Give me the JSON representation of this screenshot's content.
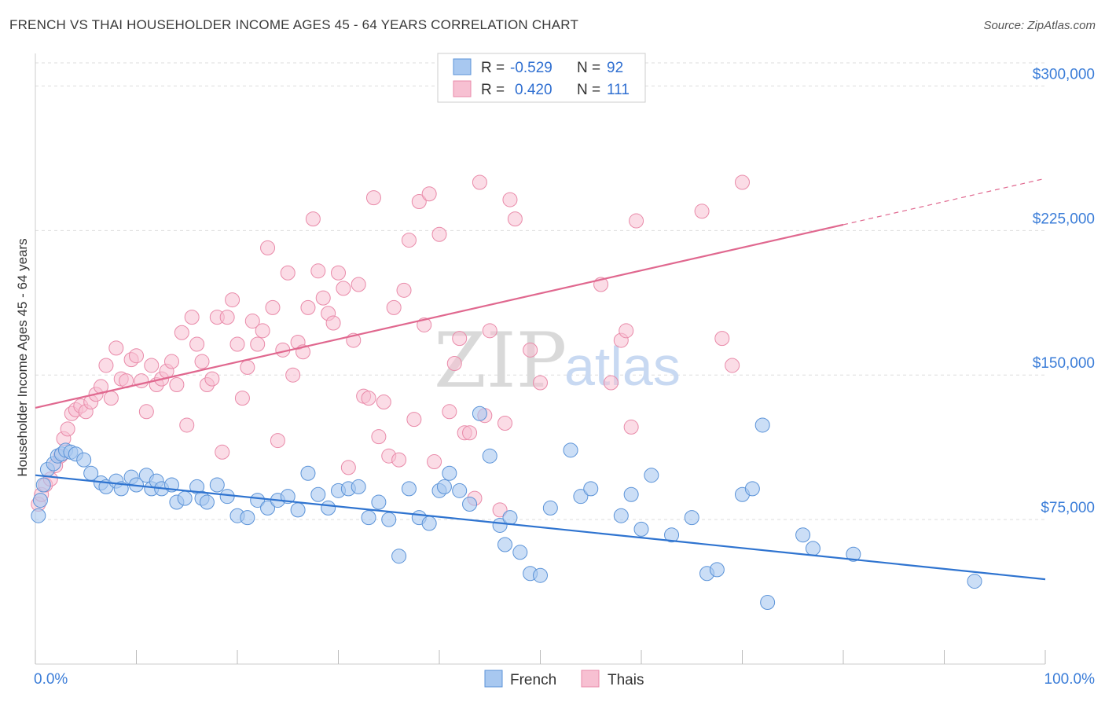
{
  "header": {
    "title": "FRENCH VS THAI HOUSEHOLDER INCOME AGES 45 - 64 YEARS CORRELATION CHART",
    "source": "Source: ZipAtlas.com"
  },
  "watermark": {
    "zip": "ZIP",
    "atlas": "atlas"
  },
  "legend_top": {
    "rows": [
      {
        "r_label": "R =",
        "r_value": "-0.529",
        "n_label": "N =",
        "n_value": "92",
        "color": "#a8c8f0"
      },
      {
        "r_label": "R =",
        "r_value": "0.420",
        "n_label": "N =",
        "n_value": "111",
        "color": "#f5b3c8"
      }
    ]
  },
  "legend_bottom": {
    "items": [
      "French",
      "Thais"
    ]
  },
  "colors": {
    "french_fill": "#a8c8f0",
    "french_stroke": "#5b93d8",
    "french_line": "#2f74d0",
    "thai_fill": "#f7c0d2",
    "thai_stroke": "#e98aa9",
    "thai_line": "#e0688f",
    "axis_text": "#3b7dd8",
    "grid": "#dddddd"
  },
  "chart_data": {
    "type": "scatter",
    "title": "FRENCH VS THAI HOUSEHOLDER INCOME AGES 45 - 64 YEARS CORRELATION CHART",
    "ylabel": "Householder Income Ages 45 - 64 years",
    "xlabel": "",
    "xlim": [
      0,
      100
    ],
    "ylim": [
      0,
      312000
    ],
    "x_tick_labels": [
      "0.0%",
      "100.0%"
    ],
    "y_ticks": [
      75000,
      150000,
      225000,
      300000
    ],
    "y_tick_labels": [
      "$75,000",
      "$150,000",
      "$225,000",
      "$300,000"
    ],
    "grid": true,
    "legend_position": "top-center",
    "series": [
      {
        "name": "French",
        "R": -0.529,
        "N": 92,
        "trend": {
          "x": [
            0,
            100
          ],
          "y": [
            98000,
            44000
          ]
        },
        "points": [
          [
            0.3,
            77000
          ],
          [
            0.5,
            85000
          ],
          [
            0.8,
            93000
          ],
          [
            1.2,
            101000
          ],
          [
            1.8,
            104000
          ],
          [
            2.2,
            108000
          ],
          [
            2.6,
            109000
          ],
          [
            3.0,
            111000
          ],
          [
            3.5,
            110000
          ],
          [
            4.0,
            109000
          ],
          [
            4.8,
            106000
          ],
          [
            5.5,
            99000
          ],
          [
            6.5,
            94000
          ],
          [
            7.0,
            92000
          ],
          [
            8.0,
            95000
          ],
          [
            8.5,
            91000
          ],
          [
            9.5,
            97000
          ],
          [
            10.0,
            93000
          ],
          [
            11.0,
            98000
          ],
          [
            11.5,
            91000
          ],
          [
            12.0,
            95000
          ],
          [
            12.5,
            91000
          ],
          [
            13.5,
            93000
          ],
          [
            14.0,
            84000
          ],
          [
            14.8,
            86000
          ],
          [
            16.0,
            92000
          ],
          [
            16.5,
            86000
          ],
          [
            17.0,
            84000
          ],
          [
            18.0,
            93000
          ],
          [
            19.0,
            87000
          ],
          [
            20.0,
            77000
          ],
          [
            21.0,
            76000
          ],
          [
            22.0,
            85000
          ],
          [
            23.0,
            81000
          ],
          [
            24.0,
            85000
          ],
          [
            25.0,
            87000
          ],
          [
            26.0,
            80000
          ],
          [
            27.0,
            99000
          ],
          [
            28.0,
            88000
          ],
          [
            29.0,
            81000
          ],
          [
            30.0,
            90000
          ],
          [
            31.0,
            91000
          ],
          [
            32.0,
            92000
          ],
          [
            33.0,
            76000
          ],
          [
            34.0,
            84000
          ],
          [
            35.0,
            75000
          ],
          [
            36.0,
            56000
          ],
          [
            37.0,
            91000
          ],
          [
            38.0,
            76000
          ],
          [
            39.0,
            73000
          ],
          [
            40.0,
            90000
          ],
          [
            40.5,
            92000
          ],
          [
            41.0,
            99000
          ],
          [
            42.0,
            90000
          ],
          [
            43.0,
            83000
          ],
          [
            44.0,
            130000
          ],
          [
            45.0,
            108000
          ],
          [
            46.0,
            72000
          ],
          [
            46.5,
            62000
          ],
          [
            47.0,
            76000
          ],
          [
            48.0,
            58000
          ],
          [
            49.0,
            47000
          ],
          [
            50.0,
            46000
          ],
          [
            51.0,
            81000
          ],
          [
            53.0,
            111000
          ],
          [
            54.0,
            87000
          ],
          [
            55.0,
            91000
          ],
          [
            58.0,
            77000
          ],
          [
            59.0,
            88000
          ],
          [
            60.0,
            70000
          ],
          [
            61.0,
            98000
          ],
          [
            63.0,
            67000
          ],
          [
            65.0,
            76000
          ],
          [
            66.5,
            47000
          ],
          [
            67.5,
            49000
          ],
          [
            70.0,
            88000
          ],
          [
            71.0,
            91000
          ],
          [
            72.0,
            124000
          ],
          [
            72.5,
            32000
          ],
          [
            76.0,
            67000
          ],
          [
            77.0,
            60000
          ],
          [
            81.0,
            57000
          ],
          [
            93.0,
            43000
          ]
        ]
      },
      {
        "name": "Thais",
        "R": 0.42,
        "N": 111,
        "trend": {
          "x": [
            0,
            80
          ],
          "y": [
            133000,
            228000
          ]
        },
        "trend_dashed_extension": {
          "x": [
            80,
            100
          ],
          "y": [
            228000,
            252000
          ]
        },
        "points": [
          [
            0.3,
            83000
          ],
          [
            0.6,
            88000
          ],
          [
            1.0,
            93000
          ],
          [
            1.5,
            96000
          ],
          [
            2.0,
            103000
          ],
          [
            2.5,
            108000
          ],
          [
            2.8,
            117000
          ],
          [
            3.2,
            122000
          ],
          [
            3.6,
            130000
          ],
          [
            4.0,
            132000
          ],
          [
            4.5,
            134000
          ],
          [
            5.0,
            131000
          ],
          [
            5.5,
            136000
          ],
          [
            6.0,
            140000
          ],
          [
            6.5,
            144000
          ],
          [
            7.0,
            155000
          ],
          [
            7.5,
            138000
          ],
          [
            8.0,
            164000
          ],
          [
            8.5,
            148000
          ],
          [
            9.0,
            147000
          ],
          [
            9.5,
            158000
          ],
          [
            10.0,
            160000
          ],
          [
            10.5,
            147000
          ],
          [
            11.0,
            131000
          ],
          [
            11.5,
            155000
          ],
          [
            12.0,
            145000
          ],
          [
            12.5,
            148000
          ],
          [
            13.0,
            152000
          ],
          [
            13.5,
            157000
          ],
          [
            14.0,
            145000
          ],
          [
            14.5,
            172000
          ],
          [
            15.0,
            124000
          ],
          [
            15.5,
            180000
          ],
          [
            16.0,
            166000
          ],
          [
            16.5,
            157000
          ],
          [
            17.0,
            145000
          ],
          [
            17.5,
            148000
          ],
          [
            18.0,
            180000
          ],
          [
            18.5,
            110000
          ],
          [
            19.0,
            180000
          ],
          [
            19.5,
            189000
          ],
          [
            20.0,
            166000
          ],
          [
            20.5,
            138000
          ],
          [
            21.0,
            154000
          ],
          [
            21.5,
            178000
          ],
          [
            22.0,
            166000
          ],
          [
            22.5,
            173000
          ],
          [
            23.0,
            216000
          ],
          [
            23.5,
            185000
          ],
          [
            24.0,
            116000
          ],
          [
            24.5,
            163000
          ],
          [
            25.0,
            203000
          ],
          [
            25.5,
            150000
          ],
          [
            26.0,
            167000
          ],
          [
            26.5,
            162000
          ],
          [
            27.0,
            185000
          ],
          [
            27.5,
            231000
          ],
          [
            28.0,
            204000
          ],
          [
            28.5,
            190000
          ],
          [
            29.0,
            182000
          ],
          [
            29.5,
            177000
          ],
          [
            30.0,
            203000
          ],
          [
            30.5,
            195000
          ],
          [
            31.0,
            102000
          ],
          [
            31.5,
            168000
          ],
          [
            32.0,
            197000
          ],
          [
            32.5,
            139000
          ],
          [
            33.0,
            138000
          ],
          [
            33.5,
            242000
          ],
          [
            34.0,
            118000
          ],
          [
            34.5,
            136000
          ],
          [
            35.0,
            108000
          ],
          [
            35.5,
            185000
          ],
          [
            36.0,
            106000
          ],
          [
            36.5,
            194000
          ],
          [
            37.0,
            220000
          ],
          [
            37.5,
            127000
          ],
          [
            38.0,
            240000
          ],
          [
            38.5,
            176000
          ],
          [
            39.0,
            244000
          ],
          [
            39.5,
            105000
          ],
          [
            40.0,
            223000
          ],
          [
            41.0,
            131000
          ],
          [
            41.5,
            156000
          ],
          [
            42.0,
            169000
          ],
          [
            42.5,
            120000
          ],
          [
            43.0,
            120000
          ],
          [
            43.5,
            86000
          ],
          [
            44.0,
            250000
          ],
          [
            44.5,
            129000
          ],
          [
            45.0,
            173000
          ],
          [
            46.0,
            80000
          ],
          [
            46.5,
            125000
          ],
          [
            47.0,
            241000
          ],
          [
            47.5,
            231000
          ],
          [
            49.0,
            163000
          ],
          [
            50.0,
            146000
          ],
          [
            56.0,
            197000
          ],
          [
            57.0,
            146000
          ],
          [
            58.0,
            168000
          ],
          [
            58.5,
            173000
          ],
          [
            59.0,
            123000
          ],
          [
            59.5,
            230000
          ],
          [
            66.0,
            235000
          ],
          [
            68.0,
            169000
          ],
          [
            69.0,
            155000
          ],
          [
            70.0,
            250000
          ]
        ]
      }
    ]
  }
}
